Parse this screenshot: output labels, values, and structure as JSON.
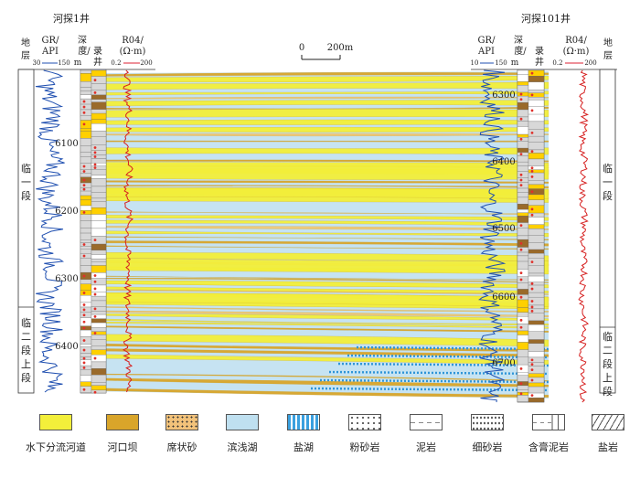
{
  "wells": {
    "left": {
      "name": "河探1井",
      "headers": {
        "strata": "地\n层",
        "gr": "GR/\nAPI",
        "gr_range_min": "30",
        "gr_range_max": "150",
        "depth": "深\n度/\nm",
        "log": "录\n井",
        "res": "R04/\n(Ω·m)",
        "res_range_min": "0.2",
        "res_range_max": "200"
      },
      "depth_ticks": [
        "6100",
        "6200",
        "6300",
        "6400"
      ],
      "units": [
        "临\n一\n段",
        "临\n二\n段\n上\n段"
      ]
    },
    "right": {
      "name": "河探101井",
      "headers": {
        "gr": "GR/\nAPI",
        "gr_range_min": "10",
        "gr_range_max": "150",
        "depth": "深\n度/\nm",
        "log": "录\n井",
        "res": "R04/\n(Ω·m)",
        "res_range_min": "0.2",
        "res_range_max": "200",
        "strata": "地\n层"
      },
      "depth_ticks": [
        "6300",
        "6400",
        "6500",
        "6600",
        "6700"
      ],
      "units": [
        "临\n一\n段",
        "临\n二\n段\n上\n段"
      ]
    }
  },
  "scale_bar": {
    "min": "0",
    "max": "200m"
  },
  "legend": [
    {
      "label": "水下分流河道",
      "color": "#f3ef3a",
      "pattern": "solid"
    },
    {
      "label": "河口坝",
      "color": "#d9a52a",
      "pattern": "solid"
    },
    {
      "label": "席状砂",
      "color": "#f2c27a",
      "pattern": "dots"
    },
    {
      "label": "滨浅湖",
      "color": "#bfe0f0",
      "pattern": "solid"
    },
    {
      "label": "盐湖",
      "color": "#3aa0df",
      "pattern": "stripes"
    },
    {
      "label": "粉砂岩",
      "color": "#ffffff",
      "pattern": "dotdash"
    },
    {
      "label": "泥岩",
      "color": "#ffffff",
      "pattern": "dash"
    },
    {
      "label": "细砂岩",
      "color": "#ffffff",
      "pattern": "fine-dots"
    },
    {
      "label": "含膏泥岩",
      "color": "#ffffff",
      "pattern": "gypsum"
    },
    {
      "label": "盐岩",
      "color": "#ffffff",
      "pattern": "hatch"
    }
  ]
}
